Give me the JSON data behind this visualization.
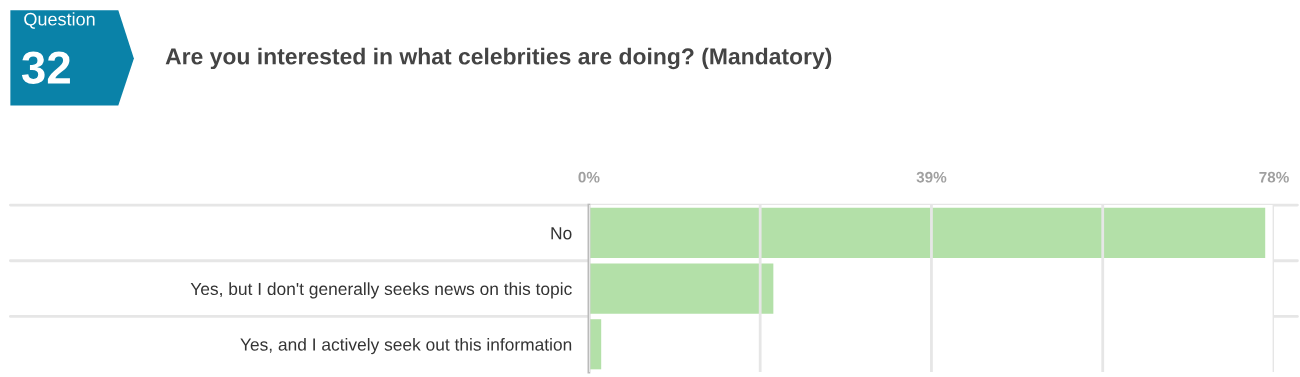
{
  "chart_data": {
    "type": "bar",
    "orientation": "horizontal",
    "title": "Are you interested in what celebrities are doing? (Mandatory)",
    "annotations": [
      "Question",
      "32"
    ],
    "categories": [
      "No",
      "Yes, but I don't generally seeks news on this topic",
      "Yes, and I actively seek out this information"
    ],
    "values": [
      77,
      21,
      1.4
    ],
    "color": "#b3e0a8",
    "xlim": [
      0,
      78
    ],
    "xticks": [
      {
        "value": 0,
        "label": "0%"
      },
      {
        "value": 19.5,
        "label": null
      },
      {
        "value": 39,
        "label": "39%"
      },
      {
        "value": 58.5,
        "label": null
      },
      {
        "value": 78,
        "label": "78%"
      }
    ],
    "grid": "x",
    "legend": false
  }
}
